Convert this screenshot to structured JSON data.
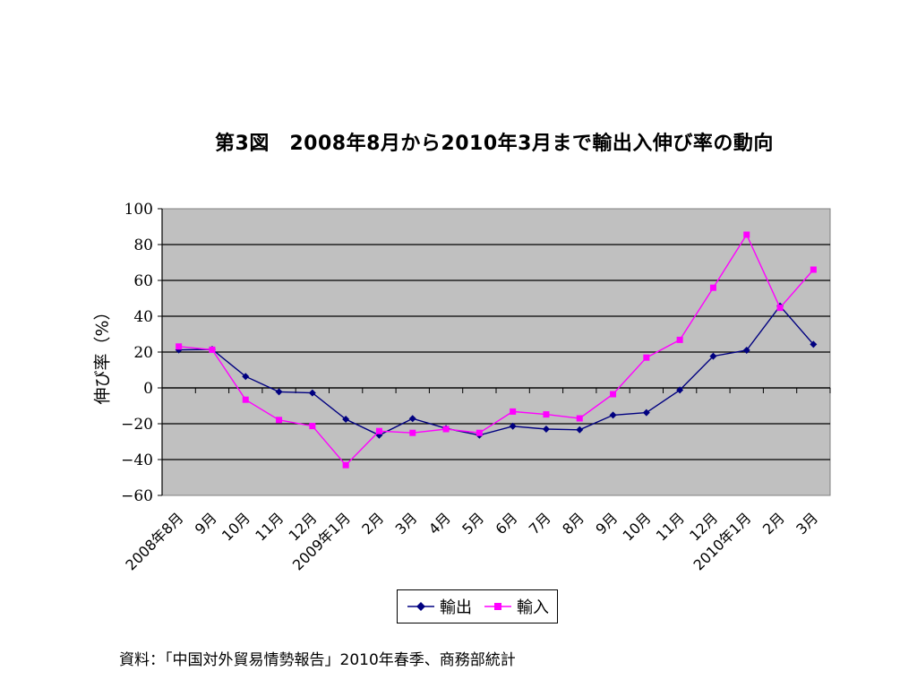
{
  "chart_data": {
    "type": "line",
    "title": "第3図　2008年8月から2010年3月まで輸出入伸び率の動向",
    "xlabel": "",
    "ylabel": "伸び率（%）",
    "ylim": [
      -60,
      100
    ],
    "yticks": [
      -60,
      -40,
      -20,
      0,
      20,
      40,
      60,
      80,
      100
    ],
    "grid": true,
    "legend_position": "bottom",
    "categories": [
      "2008年8月",
      "9月",
      "10月",
      "11月",
      "12月",
      "2009年1月",
      "2月",
      "3月",
      "4月",
      "5月",
      "6月",
      "7月",
      "8月",
      "9月",
      "10月",
      "11月",
      "12月",
      "2010年1月",
      "2月",
      "3月"
    ],
    "series": [
      {
        "name": "輸出",
        "color": "#000080",
        "marker": "diamond",
        "values": [
          21.2,
          21.5,
          6.4,
          -2.2,
          -2.8,
          -17.5,
          -26.4,
          -17.1,
          -22.6,
          -26.4,
          -21.4,
          -23.0,
          -23.4,
          -15.2,
          -13.8,
          -1.2,
          17.7,
          21.0,
          45.7,
          24.3
        ]
      },
      {
        "name": "輸入",
        "color": "#ff00ff",
        "marker": "square",
        "values": [
          23.1,
          21.3,
          -6.6,
          -17.9,
          -21.3,
          -43.1,
          -24.1,
          -25.1,
          -23.0,
          -25.1,
          -13.2,
          -14.8,
          -17.0,
          -3.5,
          16.9,
          26.8,
          55.9,
          85.5,
          44.7,
          66.0
        ]
      }
    ]
  },
  "source_note": "資料：「中国対外貿易情勢報告」2010年春季、商務部統計"
}
